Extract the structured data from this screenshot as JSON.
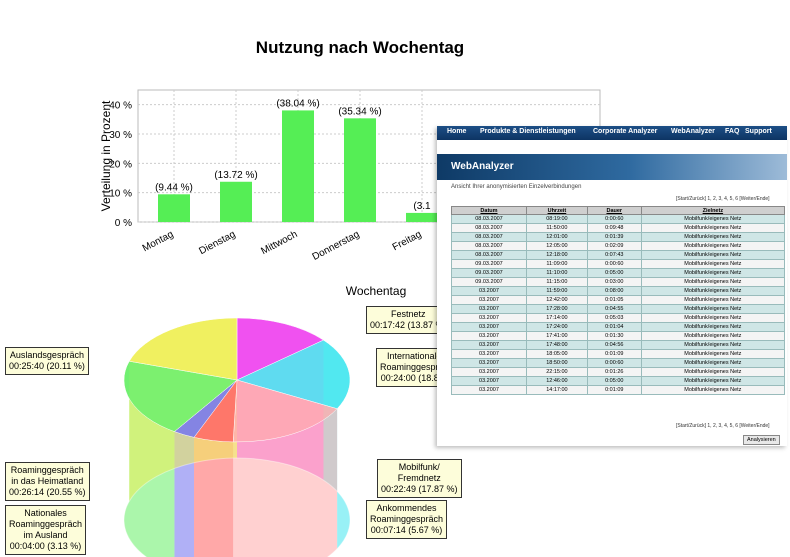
{
  "chart_data": [
    {
      "type": "bar",
      "title": "Nutzung nach Wochentag",
      "xlabel": "Wochentag",
      "ylabel": "Verteilung in Prozent",
      "ylim": [
        0,
        45
      ],
      "y_ticks": [
        "0 %",
        "10 %",
        "20 %",
        "30 %",
        "40 %"
      ],
      "categories": [
        "Montag",
        "Dienstag",
        "Mittwoch",
        "Donnerstag",
        "Freitag"
      ],
      "values": [
        9.44,
        13.72,
        38.04,
        35.34,
        3.1
      ],
      "value_labels": [
        "(9.44 %)",
        "(13.72 %)",
        "(38.04 %)",
        "(35.34 %)",
        "(3.1"
      ],
      "bar_color": "#55ee55",
      "grid": true
    },
    {
      "type": "pie",
      "labels": [
        {
          "text": [
            "Festnetz",
            "00:17:42 (13.87 %)"
          ],
          "color": "#ee44ee",
          "percent": 13.87
        },
        {
          "text": [
            "Internationales",
            "Roaminggespräch",
            "00:24:00 (18.8 %)"
          ],
          "color": "#44e6ee",
          "percent": 18.8
        },
        {
          "text": [
            "Mobilfunk/",
            "Fremdnetz",
            "00:22:49 (17.87 %)"
          ],
          "color": "#ffaaaa",
          "percent": 17.87
        },
        {
          "text": [
            "Ankommendes",
            "Roaminggespräch",
            "00:07:14 (5.67 %)"
          ],
          "color": "#ff6060",
          "percent": 5.67
        },
        {
          "text": [
            "Nationales",
            "Roaminggespräch",
            "im Ausland",
            "00:04:00 (3.13 %)"
          ],
          "color": "#7070ee",
          "percent": 3.13
        },
        {
          "text": [
            "Roaminggespräch",
            "in das Heimatland",
            "00:26:14 (20.55 %)"
          ],
          "color": "#66ee66",
          "percent": 20.55
        },
        {
          "text": [
            "Auslandsgespräch",
            "00:25:40 (20.11 %)"
          ],
          "color": "#eeee55",
          "percent": 20.11
        }
      ]
    }
  ],
  "webanalyzer": {
    "nav": [
      "Home",
      "Produkte & Dienstleistungen",
      "Corporate Analyzer",
      "WebAnalyzer",
      "FAQ",
      "Support"
    ],
    "title": "WebAnalyzer",
    "subtitle": "Ansicht Ihrer anonymisierten Einzelverbindungen",
    "pager_top": "[Start/Zurück] 1, 2, 3, 4, 5, 6 [Weiter/Ende]",
    "pager_bottom": "[Start/Zurück] 1, 2, 3, 4, 5, 6 [Weiter/Ende]",
    "columns": [
      "Datum",
      "Uhrzeit",
      "Dauer",
      "Zielnetz"
    ],
    "rows": [
      [
        "08.03.2007",
        "08:19:00",
        "0:00:60",
        "Mobilfunk/eigenes Netz"
      ],
      [
        "08.03.2007",
        "11:50:00",
        "0:09:48",
        "Mobilfunk/eigenes Netz"
      ],
      [
        "08.03.2007",
        "12:01:00",
        "0:01:39",
        "Mobilfunk/eigenes Netz"
      ],
      [
        "08.03.2007",
        "12:05:00",
        "0:02:09",
        "Mobilfunk/eigenes Netz"
      ],
      [
        "08.03.2007",
        "12:18:00",
        "0:07:43",
        "Mobilfunk/eigenes Netz"
      ],
      [
        "09.03.2007",
        "11:09:00",
        "0:00:60",
        "Mobilfunk/eigenes Netz"
      ],
      [
        "09.03.2007",
        "11:10:00",
        "0:05:00",
        "Mobilfunk/eigenes Netz"
      ],
      [
        "09.03.2007",
        "11:15:00",
        "0:03:00",
        "Mobilfunk/eigenes Netz"
      ],
      [
        "03.2007",
        "11:59:00",
        "0:08:00",
        "Mobilfunk/eigenes Netz"
      ],
      [
        "03.2007",
        "12:42:00",
        "0:01:05",
        "Mobilfunk/eigenes Netz"
      ],
      [
        "03.2007",
        "17:28:00",
        "0:04:55",
        "Mobilfunk/eigenes Netz"
      ],
      [
        "03.2007",
        "17:14:00",
        "0:05:03",
        "Mobilfunk/eigenes Netz"
      ],
      [
        "03.2007",
        "17:24:00",
        "0:01:04",
        "Mobilfunk/eigenes Netz"
      ],
      [
        "03.2007",
        "17:41:00",
        "0:01:30",
        "Mobilfunk/eigenes Netz"
      ],
      [
        "03.2007",
        "17:48:00",
        "0:04:56",
        "Mobilfunk/eigenes Netz"
      ],
      [
        "03.2007",
        "18:05:00",
        "0:01:09",
        "Mobilfunk/eigenes Netz"
      ],
      [
        "03.2007",
        "18:50:00",
        "0:00:60",
        "Mobilfunk/eigenes Netz"
      ],
      [
        "03.2007",
        "22:15:00",
        "0:01:26",
        "Mobilfunk/eigenes Netz"
      ],
      [
        "03.2007",
        "12:46:00",
        "0:05:00",
        "Mobilfunk/eigenes Netz"
      ],
      [
        "03.2007",
        "14:17:00",
        "0:01:09",
        "Mobilfunk/eigenes Netz"
      ]
    ],
    "button_label": "Analysieren"
  }
}
